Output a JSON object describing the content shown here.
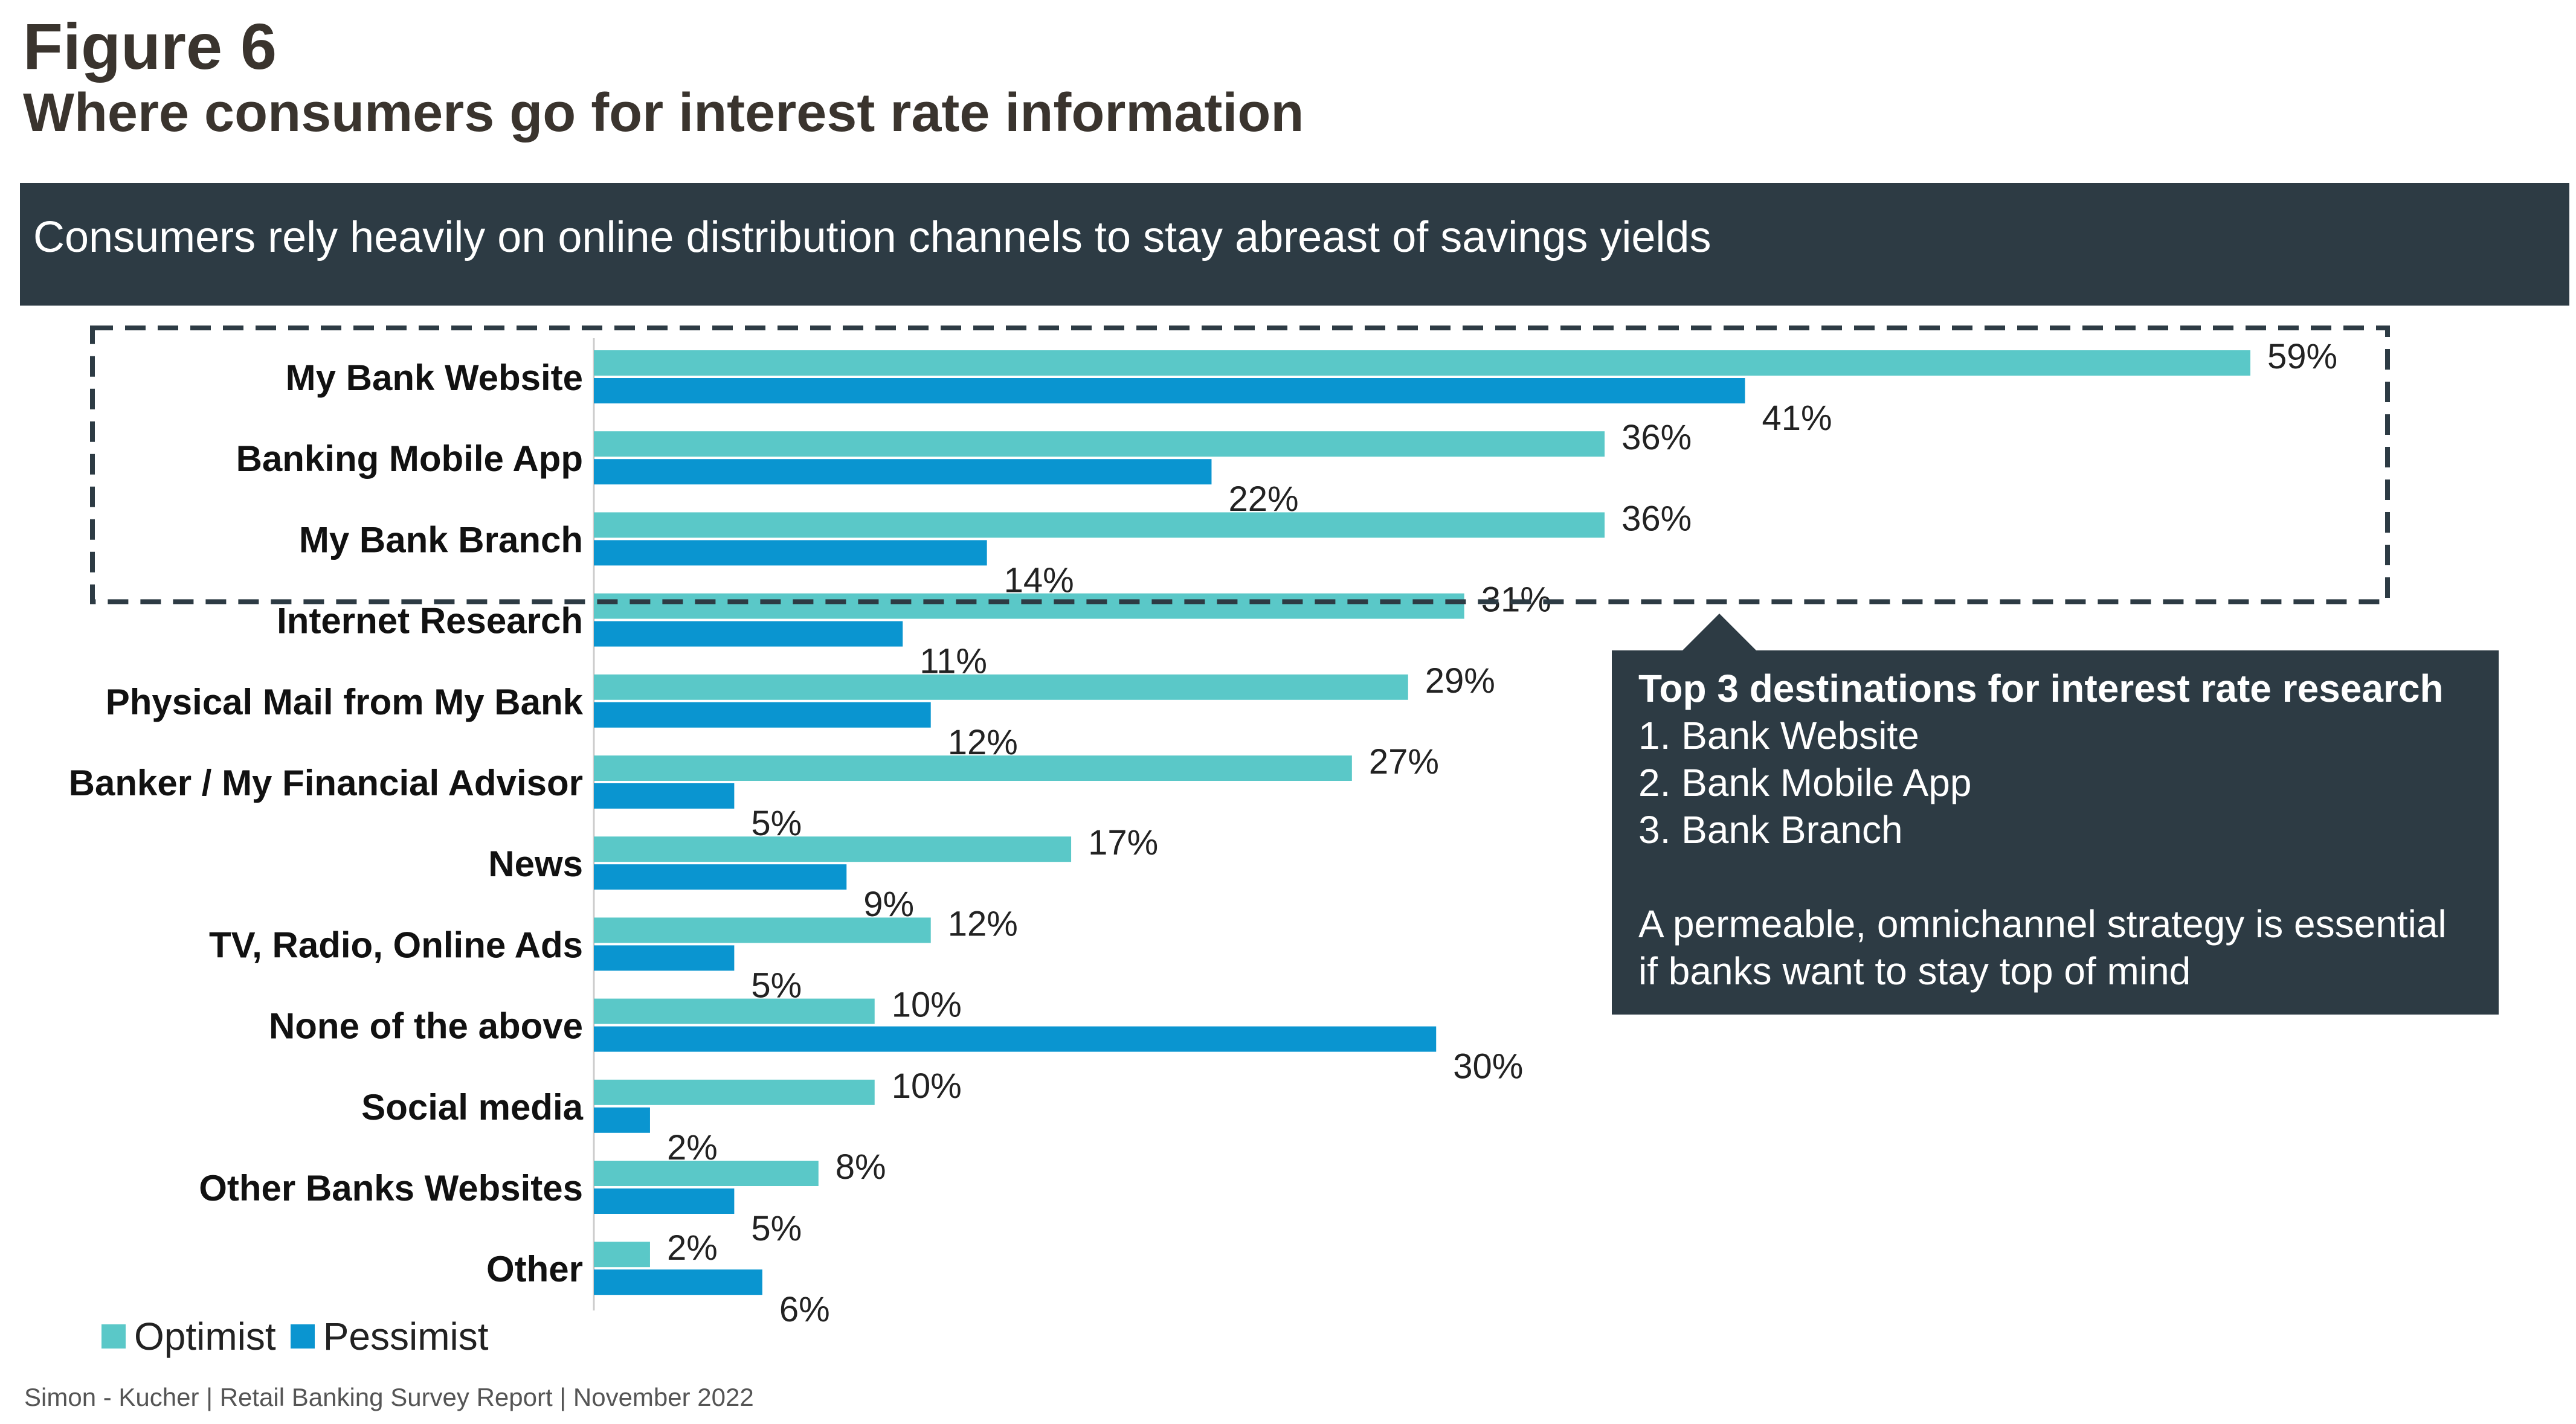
{
  "figure_label": "Figure 6",
  "title": "Where consumers go for interest rate information",
  "banner_text": "Consumers rely heavily on online distribution channels to stay abreast of savings yields",
  "callout": {
    "title": "Top 3 destinations for interest rate research",
    "items": [
      "1. Bank Website",
      "2. Bank Mobile App",
      "3. Bank Branch"
    ],
    "note_lines": [
      "A permeable, omnichannel strategy is essential",
      "if banks want to stay top of mind"
    ]
  },
  "footer": "Simon  - Kucher  |  Retail Banking Survey Report  |  November 2022",
  "colors": {
    "optimist": "#5ac8c8",
    "pessimist": "#0a95d0",
    "dark_panel": "#2d3b44",
    "highlight_border": "#2d3b44"
  },
  "chart_data": {
    "type": "bar",
    "orientation": "horizontal",
    "categories": [
      "My Bank Website",
      "Banking Mobile App",
      "My Bank Branch",
      "Internet Research",
      "Physical Mail from My Bank",
      "Banker / My Financial Advisor",
      "News",
      "TV, Radio, Online Ads",
      "None of the above",
      "Social media",
      "Other Banks Websites",
      "Other"
    ],
    "series": [
      {
        "name": "Optimist",
        "values": [
          59,
          36,
          36,
          31,
          29,
          27,
          17,
          12,
          10,
          10,
          8,
          2
        ],
        "labels": [
          "59%",
          "36%",
          "36%",
          "31%",
          "29%",
          "27%",
          "17%",
          "12%",
          "10%",
          "10%",
          "8%",
          "2%"
        ]
      },
      {
        "name": "Pessimist",
        "values": [
          41,
          22,
          14,
          11,
          12,
          5,
          9,
          5,
          30,
          2,
          5,
          6
        ],
        "labels": [
          "41%",
          "22%",
          "14%",
          "11%",
          "12%",
          "5%",
          "9%",
          "5%",
          "30%",
          "2%",
          "5%",
          "6%"
        ]
      }
    ],
    "highlighted_categories": [
      "My Bank Website",
      "Banking Mobile App",
      "My Bank Branch"
    ],
    "xlim": [
      0,
      59
    ],
    "grid": false,
    "legend_position": "bottom-left"
  }
}
